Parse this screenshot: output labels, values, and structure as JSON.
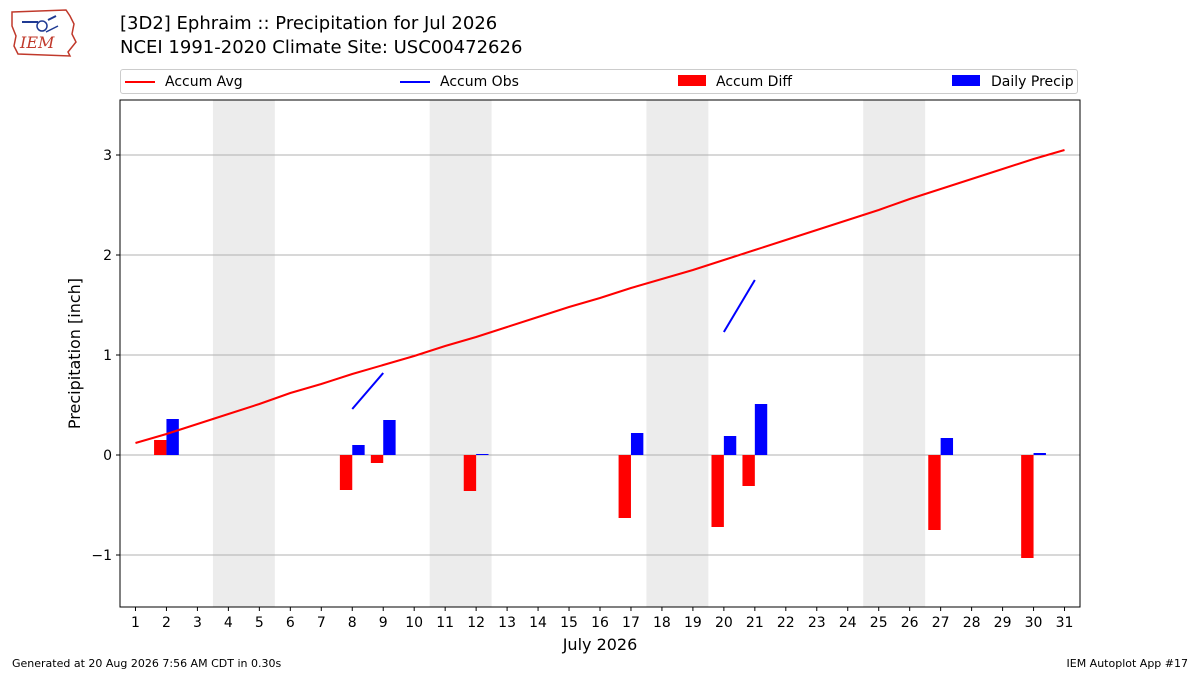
{
  "header": {
    "title_line1": "[3D2] Ephraim :: Precipitation for Jul 2026",
    "title_line2": "NCEI 1991-2020 Climate Site: USC00472626",
    "logo_text": "IEM"
  },
  "legend": {
    "items": [
      {
        "label": "Accum Avg",
        "color": "#ff0000",
        "kind": "line"
      },
      {
        "label": "Accum Obs",
        "color": "#0000ff",
        "kind": "line"
      },
      {
        "label": "Accum Diff",
        "color": "#ff0000",
        "kind": "box"
      },
      {
        "label": "Daily Precip",
        "color": "#0000ff",
        "kind": "box"
      }
    ]
  },
  "footer": {
    "left": "Generated at 20 Aug 2026 7:56 AM CDT in 0.30s",
    "right": "IEM Autoplot App #17"
  },
  "chart_data": {
    "type": "bar",
    "xlabel": "July 2026",
    "ylabel": "Precipitation [inch]",
    "xlim": [
      0.5,
      31.5
    ],
    "ylim": [
      -1.52,
      3.55
    ],
    "yticks": [
      -1,
      0,
      1,
      2,
      3
    ],
    "ytick_labels": [
      "−1",
      "0",
      "1",
      "2",
      "3"
    ],
    "categories": [
      "1",
      "2",
      "3",
      "4",
      "5",
      "6",
      "7",
      "8",
      "9",
      "10",
      "11",
      "12",
      "13",
      "14",
      "15",
      "16",
      "17",
      "18",
      "19",
      "20",
      "21",
      "22",
      "23",
      "24",
      "25",
      "26",
      "27",
      "28",
      "29",
      "30",
      "31"
    ],
    "grid": "horizontal",
    "legend_position": "top",
    "weekend_shading": [
      [
        3.5,
        5.5
      ],
      [
        10.5,
        12.5
      ],
      [
        17.5,
        19.5
      ],
      [
        24.5,
        26.5
      ]
    ],
    "series": [
      {
        "name": "Accum Avg",
        "type": "line",
        "color": "#ff0000",
        "x": [
          1,
          2,
          3,
          4,
          5,
          6,
          7,
          8,
          9,
          10,
          11,
          12,
          13,
          14,
          15,
          16,
          17,
          18,
          19,
          20,
          21,
          22,
          23,
          24,
          25,
          26,
          27,
          28,
          29,
          30,
          31
        ],
        "values": [
          0.12,
          0.21,
          0.31,
          0.41,
          0.51,
          0.62,
          0.71,
          0.81,
          0.9,
          0.99,
          1.09,
          1.18,
          1.28,
          1.38,
          1.48,
          1.57,
          1.67,
          1.76,
          1.85,
          1.95,
          2.05,
          2.15,
          2.25,
          2.35,
          2.45,
          2.56,
          2.66,
          2.76,
          2.86,
          2.96,
          3.05
        ]
      },
      {
        "name": "Accum Obs",
        "type": "line",
        "color": "#0000ff",
        "segments": [
          {
            "x": [
              8,
              9
            ],
            "values": [
              0.46,
              0.82
            ]
          },
          {
            "x": [
              20,
              21
            ],
            "values": [
              1.23,
              1.75
            ]
          }
        ]
      },
      {
        "name": "Accum Diff",
        "type": "bar",
        "color": "#ff0000",
        "x": [
          2,
          8,
          9,
          12,
          17,
          20,
          21,
          27,
          30
        ],
        "values": [
          0.15,
          -0.35,
          -0.08,
          -0.36,
          -0.63,
          -0.72,
          -0.31,
          -0.75,
          -1.03
        ]
      },
      {
        "name": "Daily Precip",
        "type": "bar",
        "color": "#0000ff",
        "x": [
          2,
          8,
          9,
          12,
          17,
          20,
          21,
          27,
          30
        ],
        "values": [
          0.36,
          0.1,
          0.35,
          0.01,
          0.22,
          0.19,
          0.51,
          0.17,
          0.02
        ]
      }
    ]
  }
}
